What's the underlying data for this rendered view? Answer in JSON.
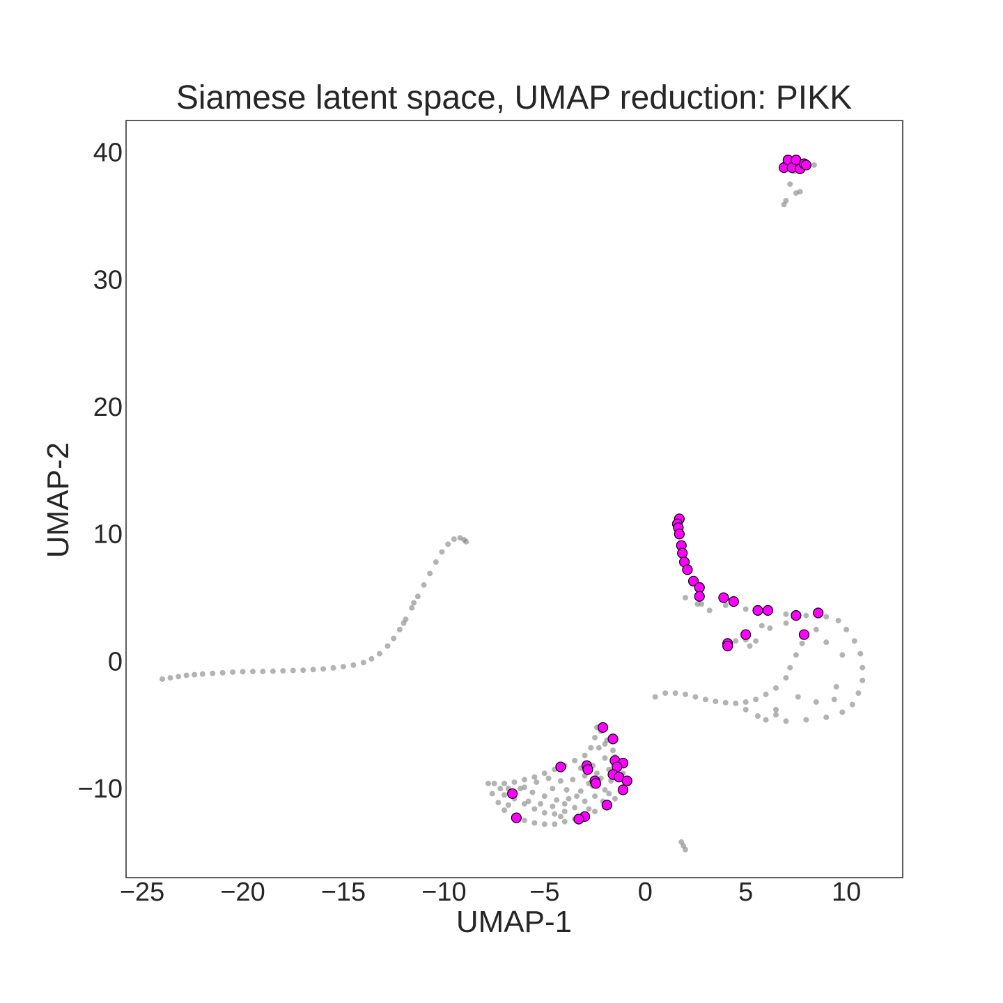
{
  "chart_data": {
    "type": "scatter",
    "title": "Siamese latent space, UMAP reduction: PIKK",
    "xlabel": "UMAP-1",
    "ylabel": "UMAP-2",
    "xlim": [
      -25.8,
      12.8
    ],
    "ylim": [
      -17.0,
      42.5
    ],
    "xticks": [
      -25,
      -20,
      -15,
      -10,
      -5,
      0,
      5,
      10
    ],
    "xtick_labels": [
      "−25",
      "−20",
      "−15",
      "−10",
      "−5",
      "0",
      "5",
      "10"
    ],
    "yticks": [
      -10,
      0,
      10,
      20,
      30,
      40
    ],
    "ytick_labels": [
      "−10",
      "0",
      "10",
      "20",
      "30",
      "40"
    ],
    "grid": false,
    "series": [
      {
        "role": "background",
        "color": "#808080",
        "points": [
          [
            -24.0,
            -1.4
          ],
          [
            -23.6,
            -1.3
          ],
          [
            -23.2,
            -1.2
          ],
          [
            -22.8,
            -1.1
          ],
          [
            -22.4,
            -1.05
          ],
          [
            -22.0,
            -1.0
          ],
          [
            -21.5,
            -0.95
          ],
          [
            -21.0,
            -0.9
          ],
          [
            -20.5,
            -0.85
          ],
          [
            -20.0,
            -0.82
          ],
          [
            -19.5,
            -0.8
          ],
          [
            -19.0,
            -0.8
          ],
          [
            -18.5,
            -0.78
          ],
          [
            -18.0,
            -0.75
          ],
          [
            -17.5,
            -0.72
          ],
          [
            -17.0,
            -0.7
          ],
          [
            -16.5,
            -0.65
          ],
          [
            -16.0,
            -0.6
          ],
          [
            -15.5,
            -0.52
          ],
          [
            -15.0,
            -0.42
          ],
          [
            -14.5,
            -0.3
          ],
          [
            -14.0,
            -0.1
          ],
          [
            -13.6,
            0.2
          ],
          [
            -13.2,
            0.6
          ],
          [
            -12.8,
            1.2
          ],
          [
            -12.5,
            1.8
          ],
          [
            -12.2,
            2.5
          ],
          [
            -11.9,
            3.3
          ],
          [
            -11.6,
            4.2
          ],
          [
            -11.3,
            5.1
          ],
          [
            -11.0,
            6.0
          ],
          [
            -10.7,
            6.9
          ],
          [
            -10.4,
            7.8
          ],
          [
            -10.1,
            8.6
          ],
          [
            -9.8,
            9.2
          ],
          [
            -9.5,
            9.6
          ],
          [
            -9.2,
            9.7
          ],
          [
            -8.9,
            9.4
          ],
          [
            -9.0,
            9.55
          ],
          [
            -12.0,
            3.0
          ],
          [
            -11.5,
            4.6
          ],
          [
            0.5,
            -2.8
          ],
          [
            1.0,
            -2.5
          ],
          [
            1.5,
            -2.5
          ],
          [
            2.0,
            -2.6
          ],
          [
            2.5,
            -2.8
          ],
          [
            3.0,
            -3.0
          ],
          [
            3.5,
            -3.15
          ],
          [
            4.0,
            -3.25
          ],
          [
            4.5,
            -3.3
          ],
          [
            5.0,
            -3.2
          ],
          [
            5.5,
            -3.0
          ],
          [
            6.0,
            -2.6
          ],
          [
            6.5,
            -2.1
          ],
          [
            7.0,
            -1.3
          ],
          [
            7.2,
            -0.5
          ],
          [
            7.5,
            0.5
          ],
          [
            7.8,
            1.4
          ],
          [
            8.0,
            2.0
          ],
          [
            2.0,
            5.0
          ],
          [
            2.6,
            4.5
          ],
          [
            3.2,
            4.0
          ],
          [
            4.0,
            4.4
          ],
          [
            5.0,
            4.1
          ],
          [
            6.0,
            3.9
          ],
          [
            7.0,
            3.7
          ],
          [
            8.0,
            3.6
          ],
          [
            9.0,
            3.5
          ],
          [
            9.6,
            3.2
          ],
          [
            10.0,
            2.5
          ],
          [
            10.4,
            1.6
          ],
          [
            10.7,
            0.6
          ],
          [
            10.8,
            -0.5
          ],
          [
            10.8,
            -1.5
          ],
          [
            10.6,
            -2.5
          ],
          [
            10.3,
            -3.4
          ],
          [
            9.8,
            -4.0
          ],
          [
            9.0,
            -4.4
          ],
          [
            8.0,
            -4.6
          ],
          [
            7.0,
            -4.7
          ],
          [
            6.0,
            -4.6
          ],
          [
            5.6,
            -4.3
          ],
          [
            5.0,
            -3.8
          ],
          [
            6.5,
            -3.8
          ],
          [
            8.5,
            -3.2
          ],
          [
            9.5,
            -2.0
          ],
          [
            9.8,
            0.5
          ],
          [
            9.0,
            1.5
          ],
          [
            8.5,
            2.5
          ],
          [
            7.0,
            3.0
          ],
          [
            6.5,
            -4.2
          ],
          [
            9.4,
            -3.0
          ],
          [
            7.6,
            -2.8
          ],
          [
            4.0,
            1.5
          ],
          [
            4.5,
            1.6
          ],
          [
            5.0,
            1.7
          ],
          [
            5.5,
            1.6
          ],
          [
            4.2,
            1.3
          ],
          [
            5.2,
            1.2
          ],
          [
            2.8,
            4.5
          ],
          [
            6.2,
            2.6
          ],
          [
            5.8,
            2.8
          ],
          [
            -7.8,
            -9.6
          ],
          [
            -7.6,
            -10.4
          ],
          [
            -7.3,
            -11.1
          ],
          [
            -7.0,
            -11.7
          ],
          [
            -6.5,
            -12.2
          ],
          [
            -6.0,
            -12.5
          ],
          [
            -5.5,
            -12.7
          ],
          [
            -5.0,
            -12.8
          ],
          [
            -4.5,
            -12.8
          ],
          [
            -4.0,
            -12.6
          ],
          [
            -3.5,
            -12.4
          ],
          [
            -3.0,
            -12.2
          ],
          [
            -2.5,
            -11.8
          ],
          [
            -2.0,
            -11.3
          ],
          [
            -1.5,
            -10.8
          ],
          [
            -1.2,
            -10.2
          ],
          [
            -1.0,
            -9.5
          ],
          [
            -1.1,
            -8.8
          ],
          [
            -1.3,
            -8.0
          ],
          [
            -1.6,
            -7.0
          ],
          [
            -1.9,
            -6.2
          ],
          [
            -2.2,
            -5.5
          ],
          [
            -2.4,
            -5.2
          ],
          [
            -2.5,
            -6.0
          ],
          [
            -2.7,
            -6.8
          ],
          [
            -3.0,
            -7.4
          ],
          [
            -3.5,
            -7.8
          ],
          [
            -4.0,
            -8.2
          ],
          [
            -4.5,
            -8.5
          ],
          [
            -5.0,
            -8.8
          ],
          [
            -5.5,
            -9.1
          ],
          [
            -6.0,
            -9.3
          ],
          [
            -6.5,
            -9.5
          ],
          [
            -7.0,
            -9.6
          ],
          [
            -7.5,
            -9.6
          ],
          [
            -7.0,
            -10.5
          ],
          [
            -6.5,
            -10.8
          ],
          [
            -6.0,
            -11.2
          ],
          [
            -5.5,
            -11.6
          ],
          [
            -5.0,
            -11.9
          ],
          [
            -4.5,
            -12.0
          ],
          [
            -4.0,
            -11.8
          ],
          [
            -3.5,
            -11.5
          ],
          [
            -3.0,
            -11.0
          ],
          [
            -2.5,
            -10.6
          ],
          [
            -2.0,
            -10.1
          ],
          [
            -1.7,
            -9.4
          ],
          [
            -1.8,
            -8.5
          ],
          [
            -2.0,
            -7.6
          ],
          [
            -2.3,
            -6.8
          ],
          [
            -6.8,
            -10.0
          ],
          [
            -6.2,
            -10.0
          ],
          [
            -5.6,
            -10.3
          ],
          [
            -5.0,
            -10.6
          ],
          [
            -4.4,
            -10.9
          ],
          [
            -3.8,
            -10.8
          ],
          [
            -3.2,
            -10.2
          ],
          [
            -2.8,
            -9.6
          ],
          [
            -2.4,
            -8.8
          ],
          [
            -6.0,
            -9.9
          ],
          [
            -5.4,
            -9.5
          ],
          [
            -4.8,
            -9.2
          ],
          [
            -4.2,
            -9.4
          ],
          [
            -3.6,
            -9.3
          ],
          [
            -3.0,
            -9.0
          ],
          [
            -2.6,
            -8.2
          ],
          [
            -5.8,
            -11.0
          ],
          [
            -5.2,
            -11.2
          ],
          [
            -4.6,
            -11.4
          ],
          [
            -4.0,
            -11.2
          ],
          [
            -3.4,
            -10.6
          ],
          [
            -2.6,
            -9.8
          ],
          [
            -2.2,
            -9.2
          ],
          [
            -1.8,
            -10.4
          ],
          [
            -2.1,
            -11.0
          ],
          [
            -2.8,
            -11.6
          ],
          [
            -4.2,
            -12.2
          ],
          [
            -6.8,
            -11.3
          ],
          [
            -7.2,
            -10.0
          ],
          [
            -1.4,
            -8.9
          ],
          [
            -1.5,
            -7.5
          ],
          [
            -2.0,
            -6.5
          ],
          [
            -3.2,
            -8.4
          ],
          [
            -4.6,
            -10.0
          ],
          [
            -3.9,
            -10.1
          ],
          [
            7.0,
            38.8
          ],
          [
            7.3,
            38.9
          ],
          [
            7.6,
            39.0
          ],
          [
            7.9,
            38.8
          ],
          [
            7.1,
            39.2
          ],
          [
            7.5,
            39.3
          ],
          [
            8.0,
            39.1
          ],
          [
            6.9,
            38.6
          ],
          [
            7.4,
            38.5
          ],
          [
            7.8,
            38.6
          ],
          [
            8.4,
            39.0
          ],
          [
            7.2,
            37.5
          ],
          [
            7.5,
            36.8
          ],
          [
            7.0,
            36.2
          ],
          [
            6.9,
            35.9
          ],
          [
            7.7,
            36.9
          ],
          [
            1.8,
            -14.2
          ],
          [
            1.9,
            -14.5
          ],
          [
            2.0,
            -14.8
          ]
        ]
      },
      {
        "role": "highlight",
        "color": "#ff00ff",
        "points": [
          [
            1.7,
            11.2
          ],
          [
            1.6,
            10.8
          ],
          [
            1.65,
            10.5
          ],
          [
            1.7,
            10.0
          ],
          [
            1.8,
            9.1
          ],
          [
            1.85,
            8.5
          ],
          [
            1.95,
            7.8
          ],
          [
            2.1,
            7.2
          ],
          [
            2.4,
            6.3
          ],
          [
            2.7,
            5.8
          ],
          [
            2.7,
            5.1
          ],
          [
            3.9,
            5.0
          ],
          [
            4.4,
            4.7
          ],
          [
            5.6,
            4.0
          ],
          [
            6.1,
            4.0
          ],
          [
            7.5,
            3.6
          ],
          [
            8.6,
            3.8
          ],
          [
            5.0,
            2.1
          ],
          [
            7.9,
            2.1
          ],
          [
            4.1,
            1.4
          ],
          [
            4.1,
            1.2
          ],
          [
            -2.1,
            -5.2
          ],
          [
            -1.6,
            -6.1
          ],
          [
            -4.2,
            -8.3
          ],
          [
            -2.9,
            -8.2
          ],
          [
            -1.5,
            -7.8
          ],
          [
            -1.1,
            -8.0
          ],
          [
            -1.4,
            -8.3
          ],
          [
            -2.85,
            -8.5
          ],
          [
            -1.6,
            -8.9
          ],
          [
            -1.3,
            -9.1
          ],
          [
            -2.5,
            -9.4
          ],
          [
            -0.9,
            -9.4
          ],
          [
            -2.45,
            -9.6
          ],
          [
            -1.1,
            -10.1
          ],
          [
            -6.6,
            -10.4
          ],
          [
            -1.9,
            -11.3
          ],
          [
            -3.0,
            -12.2
          ],
          [
            -3.3,
            -12.4
          ],
          [
            -6.4,
            -12.3
          ],
          [
            6.9,
            38.8
          ],
          [
            7.1,
            39.4
          ],
          [
            7.3,
            38.8
          ],
          [
            7.5,
            39.4
          ],
          [
            7.7,
            38.7
          ],
          [
            7.9,
            39.1
          ],
          [
            8.0,
            39.0
          ]
        ]
      }
    ]
  }
}
